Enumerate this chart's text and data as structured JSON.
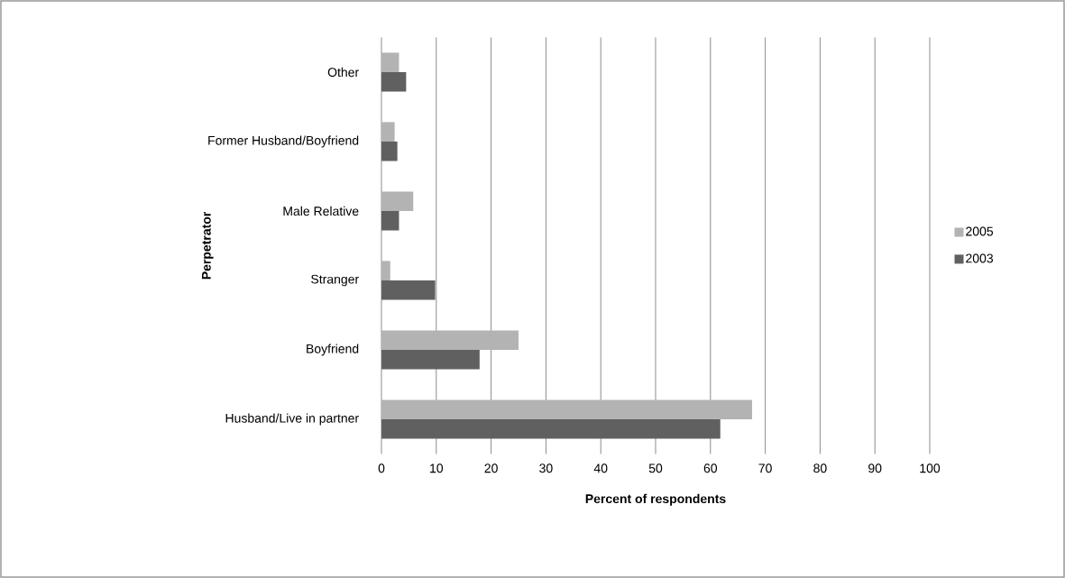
{
  "chart_data": {
    "type": "bar",
    "orientation": "horizontal",
    "categories": [
      "Other",
      "Former Husband/Boyfriend",
      "Male Relative",
      "Stranger",
      "Boyfriend",
      "Husband/Live in partner"
    ],
    "series": [
      {
        "name": "2005",
        "color": "#b3b3b3",
        "values": [
          3.2,
          2.4,
          5.8,
          1.6,
          25,
          67.6
        ]
      },
      {
        "name": "2003",
        "color": "#606060",
        "values": [
          4.5,
          2.9,
          3.2,
          9.8,
          17.9,
          61.8
        ]
      }
    ],
    "xlabel": "Percent of respondents",
    "ylabel": "Perpetrator",
    "xlim": [
      0,
      100
    ],
    "xticks": [
      0,
      10,
      20,
      30,
      40,
      50,
      60,
      70,
      80,
      90,
      100
    ],
    "grid": "x",
    "legend": "right"
  }
}
